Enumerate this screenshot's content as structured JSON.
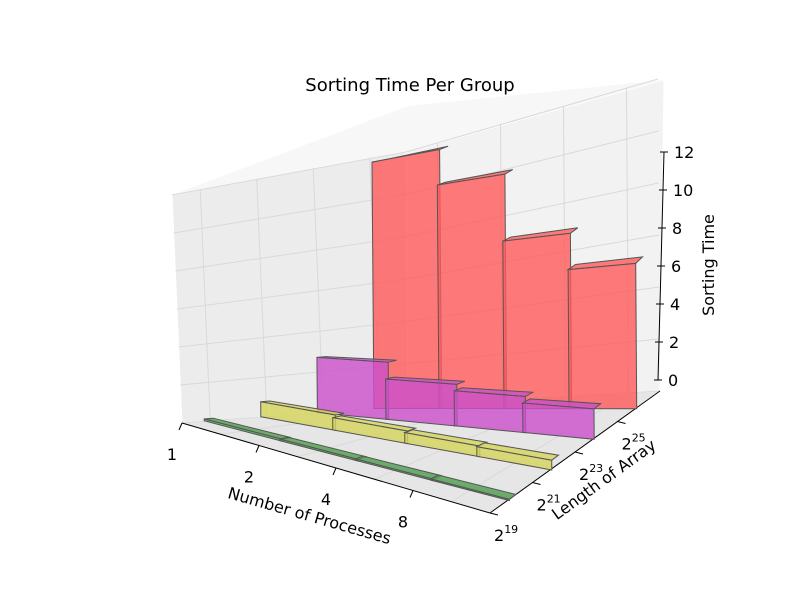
{
  "chart_data": {
    "type": "bar",
    "variant": "3d-bar",
    "title": "Sorting Time Per Group",
    "xlabel": "Number of Processes",
    "ylabel": "Length of Array",
    "zlabel": "Sorting Time",
    "x_categories": [
      "1",
      "2",
      "4",
      "8"
    ],
    "y_categories": [
      {
        "base": "2",
        "exp": "19"
      },
      {
        "base": "2",
        "exp": "21"
      },
      {
        "base": "2",
        "exp": "23"
      },
      {
        "base": "2",
        "exp": "25"
      }
    ],
    "z_ticks": [
      "0",
      "2",
      "4",
      "6",
      "8",
      "10",
      "12"
    ],
    "zlim": [
      0,
      12
    ],
    "grid": true,
    "series": [
      {
        "length": "2^19",
        "color": "#4c9e4c",
        "values": [
          0.1,
          0.08,
          0.07,
          0.06
        ]
      },
      {
        "length": "2^21",
        "color": "#d4d45a",
        "values": [
          0.75,
          0.6,
          0.5,
          0.45
        ]
      },
      {
        "length": "2^23",
        "color": "#cc4fcc",
        "values": [
          2.7,
          1.9,
          1.6,
          1.3
        ]
      },
      {
        "length": "2^25",
        "color": "#ff5a5a",
        "values": [
          11.8,
          10.2,
          7.3,
          5.8
        ]
      }
    ]
  }
}
